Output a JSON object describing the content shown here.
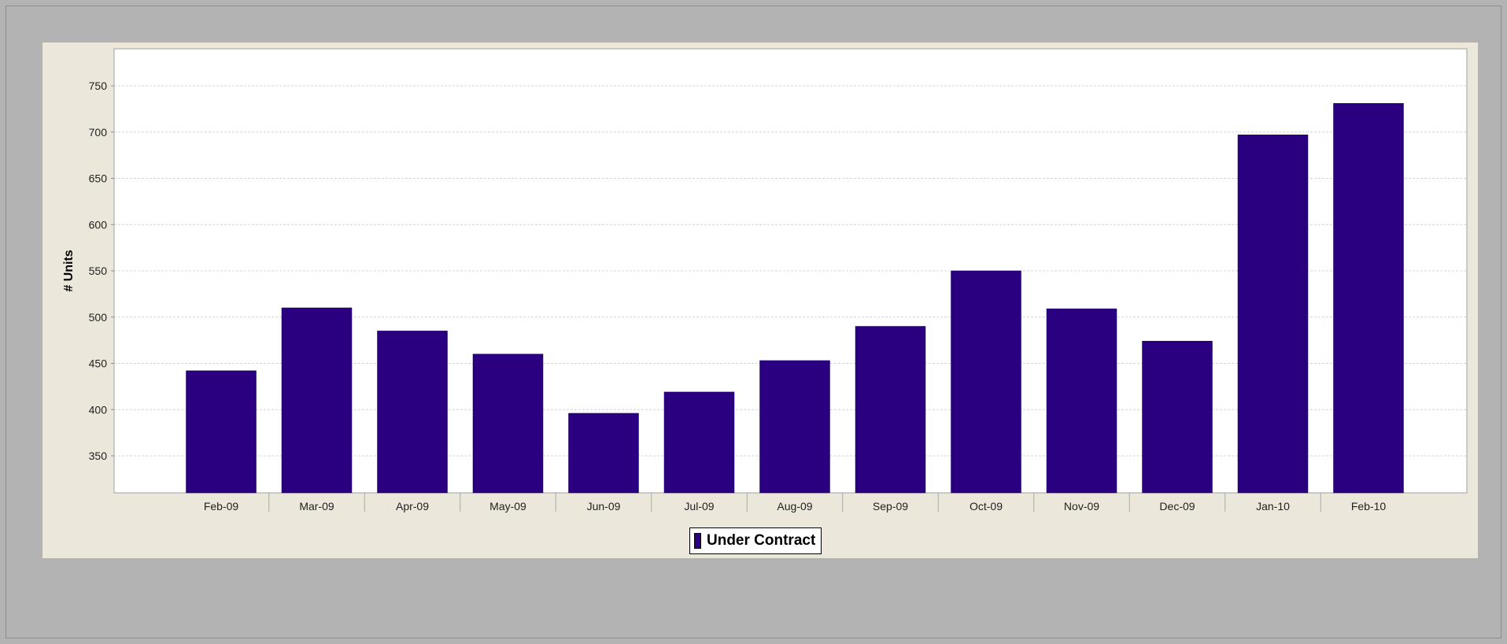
{
  "chart_data": {
    "type": "bar",
    "categories": [
      "Feb-09",
      "Mar-09",
      "Apr-09",
      "May-09",
      "Jun-09",
      "Jul-09",
      "Aug-09",
      "Sep-09",
      "Oct-09",
      "Nov-09",
      "Dec-09",
      "Jan-10",
      "Feb-10"
    ],
    "series": [
      {
        "name": "Under Contract",
        "values": [
          442,
          510,
          485,
          460,
          396,
          419,
          453,
          490,
          550,
          509,
          474,
          697,
          731
        ],
        "color": "#2a0080"
      }
    ],
    "ylabel": "# Units",
    "xlabel": "",
    "ylim": [
      310,
      790
    ],
    "yticks": [
      350,
      400,
      450,
      500,
      550,
      600,
      650,
      700,
      750
    ],
    "grid": true,
    "legend_position": "bottom-center"
  }
}
